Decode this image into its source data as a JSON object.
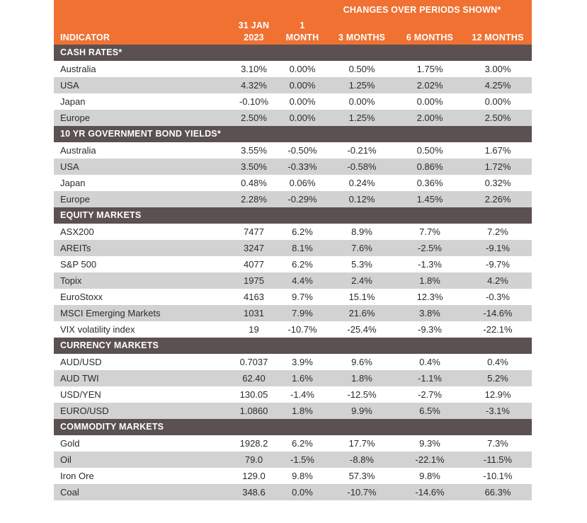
{
  "header": {
    "changes_label": "CHANGES OVER PERIODS SHOWN*",
    "indicator_label": "INDICATOR",
    "col1_line1": "31 JAN",
    "col1_line2": "2023",
    "col2_line1": "1",
    "col2_line2": "MONTH",
    "col3": "3 MONTHS",
    "col4": "6 MONTHS",
    "col5": "12 MONTHS"
  },
  "sections": [
    {
      "title": "CASH RATES*",
      "rows": [
        {
          "name": "Australia",
          "v": [
            "3.10%",
            "0.00%",
            "0.50%",
            "1.75%",
            "3.00%"
          ]
        },
        {
          "name": "USA",
          "v": [
            "4.32%",
            "0.00%",
            "1.25%",
            "2.02%",
            "4.25%"
          ]
        },
        {
          "name": "Japan",
          "v": [
            "-0.10%",
            "0.00%",
            "0.00%",
            "0.00%",
            "0.00%"
          ]
        },
        {
          "name": "Europe",
          "v": [
            "2.50%",
            "0.00%",
            "1.25%",
            "2.00%",
            "2.50%"
          ]
        }
      ]
    },
    {
      "title": "10 YR GOVERNMENT BOND YIELDS*",
      "rows": [
        {
          "name": "Australia",
          "v": [
            "3.55%",
            "-0.50%",
            "-0.21%",
            "0.50%",
            "1.67%"
          ]
        },
        {
          "name": "USA",
          "v": [
            "3.50%",
            "-0.33%",
            "-0.58%",
            "0.86%",
            "1.72%"
          ]
        },
        {
          "name": "Japan",
          "v": [
            "0.48%",
            "0.06%",
            "0.24%",
            "0.36%",
            "0.32%"
          ]
        },
        {
          "name": "Europe",
          "v": [
            "2.28%",
            "-0.29%",
            "0.12%",
            "1.45%",
            "2.26%"
          ]
        }
      ]
    },
    {
      "title": "EQUITY MARKETS",
      "rows": [
        {
          "name": "ASX200",
          "v": [
            "7477",
            "6.2%",
            "8.9%",
            "7.7%",
            "7.2%"
          ]
        },
        {
          "name": "AREITs",
          "v": [
            "3247",
            "8.1%",
            "7.6%",
            "-2.5%",
            "-9.1%"
          ]
        },
        {
          "name": "S&P 500",
          "v": [
            "4077",
            "6.2%",
            "5.3%",
            "-1.3%",
            "-9.7%"
          ]
        },
        {
          "name": "Topix",
          "v": [
            "1975",
            "4.4%",
            "2.4%",
            "1.8%",
            "4.2%"
          ]
        },
        {
          "name": "EuroStoxx",
          "v": [
            "4163",
            "9.7%",
            "15.1%",
            "12.3%",
            "-0.3%"
          ]
        },
        {
          "name": "MSCI Emerging Markets",
          "v": [
            "1031",
            "7.9%",
            "21.6%",
            "3.8%",
            "-14.6%"
          ]
        },
        {
          "name": "VIX volatility index",
          "v": [
            "19",
            "-10.7%",
            "-25.4%",
            "-9.3%",
            "-22.1%"
          ]
        }
      ]
    },
    {
      "title": "CURRENCY MARKETS",
      "rows": [
        {
          "name": "AUD/USD",
          "v": [
            "0.7037",
            "3.9%",
            "9.6%",
            "0.4%",
            "0.4%"
          ]
        },
        {
          "name": "AUD TWI",
          "v": [
            "62.40",
            "1.6%",
            "1.8%",
            "-1.1%",
            "5.2%"
          ]
        },
        {
          "name": "USD/YEN",
          "v": [
            "130.05",
            "-1.4%",
            "-12.5%",
            "-2.7%",
            "12.9%"
          ]
        },
        {
          "name": "EURO/USD",
          "v": [
            "1.0860",
            "1.8%",
            "9.9%",
            "6.5%",
            "-3.1%"
          ]
        }
      ]
    },
    {
      "title": "COMMODITY MARKETS",
      "rows": [
        {
          "name": "Gold",
          "v": [
            "1928.2",
            "6.2%",
            "17.7%",
            "9.3%",
            "7.3%"
          ]
        },
        {
          "name": "Oil",
          "v": [
            "79.0",
            "-1.5%",
            "-8.8%",
            "-22.1%",
            "-11.5%"
          ]
        },
        {
          "name": "Iron Ore",
          "v": [
            "129.0",
            "9.8%",
            "57.3%",
            "9.8%",
            "-10.1%"
          ]
        },
        {
          "name": "Coal",
          "v": [
            "348.6",
            "0.0%",
            "-10.7%",
            "-14.6%",
            "66.3%"
          ]
        }
      ]
    }
  ],
  "colors": {
    "header_bg": "#f07132",
    "section_bg": "#5b5150",
    "alt_row_bg": "#d2d2d2"
  }
}
